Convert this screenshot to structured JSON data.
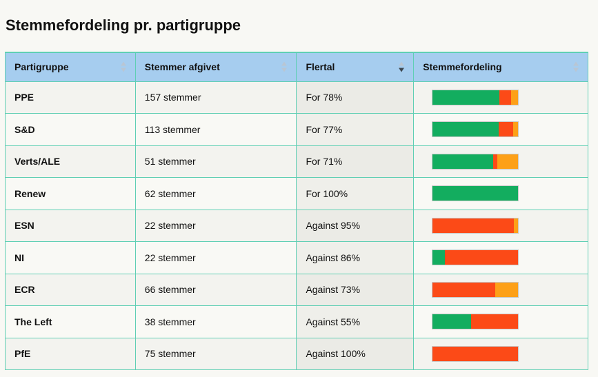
{
  "page": {
    "title": "Stemmefordeling pr. partigruppe"
  },
  "table": {
    "headers": {
      "group": "Partigruppe",
      "votes": "Stemmer afgivet",
      "flertal": "Flertal",
      "distribution": "Stemmefordeling"
    },
    "sorted_column": "flertal",
    "colors": {
      "for": "#13ad5f",
      "against": "#fc4a17",
      "abstain": "#fda018"
    },
    "rows": [
      {
        "group": "PPE",
        "votes": "157 stemmer",
        "flertal": "For 78%",
        "dist": {
          "for": 78,
          "against": 14,
          "abstain": 8
        }
      },
      {
        "group": "S&D",
        "votes": "113 stemmer",
        "flertal": "For 77%",
        "dist": {
          "for": 77,
          "against": 17,
          "abstain": 6
        }
      },
      {
        "group": "Verts/ALE",
        "votes": "51 stemmer",
        "flertal": "For 71%",
        "dist": {
          "for": 71,
          "against": 5,
          "abstain": 24
        }
      },
      {
        "group": "Renew",
        "votes": "62 stemmer",
        "flertal": "For 100%",
        "dist": {
          "for": 100,
          "against": 0,
          "abstain": 0
        }
      },
      {
        "group": "ESN",
        "votes": "22 stemmer",
        "flertal": "Against 95%",
        "dist": {
          "for": 0,
          "against": 95,
          "abstain": 5
        }
      },
      {
        "group": "NI",
        "votes": "22 stemmer",
        "flertal": "Against 86%",
        "dist": {
          "for": 14,
          "against": 86,
          "abstain": 0
        }
      },
      {
        "group": "ECR",
        "votes": "66 stemmer",
        "flertal": "Against 73%",
        "dist": {
          "for": 0,
          "against": 73,
          "abstain": 27
        }
      },
      {
        "group": "The Left",
        "votes": "38 stemmer",
        "flertal": "Against 55%",
        "dist": {
          "for": 45,
          "against": 55,
          "abstain": 0
        }
      },
      {
        "group": "PfE",
        "votes": "75 stemmer",
        "flertal": "Against 100%",
        "dist": {
          "for": 0,
          "against": 100,
          "abstain": 0
        }
      }
    ]
  }
}
